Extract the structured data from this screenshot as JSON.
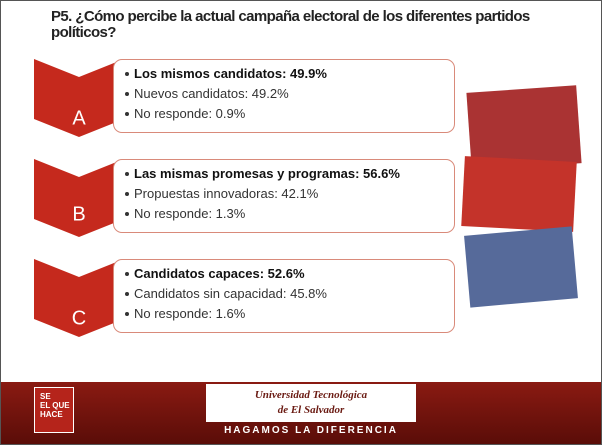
{
  "title": "P5. ¿Cómo percibe la actual campaña electoral de los diferentes partidos políticos?",
  "sections": [
    {
      "letter": "A",
      "items": [
        "Los mismos candidatos: 49.9%",
        "Nuevos candidatos: 49.2%",
        "No responde: 0.9%"
      ]
    },
    {
      "letter": "B",
      "items": [
        "Las mismas promesas y programas: 56.6%",
        "Propuestas innovadoras: 42.1%",
        "No responde: 1.3%"
      ]
    },
    {
      "letter": "C",
      "items": [
        "Candidatos capaces: 52.6%",
        "Candidatos sin capacidad: 45.8%",
        "No responde: 1.6%"
      ]
    }
  ],
  "footer": {
    "logo": [
      "SE",
      "EL QUE",
      "HACE"
    ],
    "university": [
      "Universidad Tecnológica",
      "de El Salvador"
    ],
    "slogan": "HAGAMOS LA DIFERENCIA"
  }
}
